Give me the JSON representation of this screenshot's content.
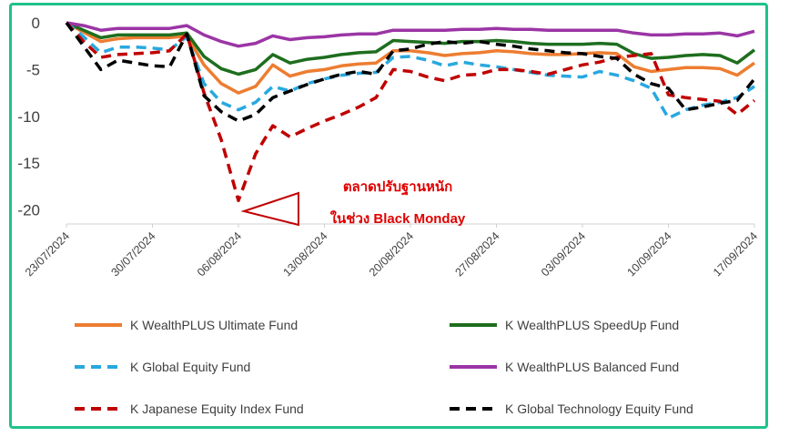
{
  "chart_data": {
    "type": "line",
    "ylim": [
      -21.5,
      0
    ],
    "yticks": [
      0,
      -5,
      -10,
      -15,
      -20
    ],
    "xticks": [
      "23/07/2024",
      "30/07/2024",
      "06/08/2024",
      "13/08/2024",
      "20/08/2024",
      "27/08/2024",
      "03/09/2024",
      "10/09/2024",
      "17/09/2024"
    ],
    "dates": [
      "23/07",
      "24/07",
      "25/07",
      "26/07",
      "29/07",
      "30/07",
      "31/07",
      "01/08",
      "02/08",
      "05/08",
      "06/08",
      "07/08",
      "08/08",
      "09/08",
      "12/08",
      "13/08",
      "14/08",
      "15/08",
      "16/08",
      "19/08",
      "20/08",
      "21/08",
      "22/08",
      "23/08",
      "26/08",
      "27/08",
      "28/08",
      "29/08",
      "30/08",
      "02/09",
      "03/09",
      "04/09",
      "05/09",
      "06/09",
      "09/09",
      "10/09",
      "11/09",
      "12/09",
      "13/09",
      "16/09",
      "17/09"
    ],
    "series": [
      {
        "name": "K WealthPLUS Ultimate Fund",
        "color": "#ed7d31",
        "dash": false,
        "values": [
          0,
          -1.0,
          -2.0,
          -1.7,
          -1.6,
          -1.6,
          -1.6,
          -1.4,
          -4.5,
          -6.5,
          -7.5,
          -6.8,
          -4.5,
          -5.7,
          -5.2,
          -5.0,
          -4.6,
          -4.4,
          -4.3,
          -3.0,
          -3.0,
          -3.2,
          -3.5,
          -3.3,
          -3.2,
          -3.0,
          -3.1,
          -3.3,
          -3.4,
          -3.4,
          -3.3,
          -3.2,
          -3.3,
          -4.7,
          -5.2,
          -5.0,
          -4.8,
          -4.8,
          -4.9,
          -5.6,
          -4.3
        ]
      },
      {
        "name": "K WealthPLUS SpeedUp Fund",
        "color": "#1e6e1e",
        "dash": false,
        "values": [
          0,
          -0.8,
          -1.6,
          -1.3,
          -1.3,
          -1.3,
          -1.3,
          -1.1,
          -3.6,
          -4.9,
          -5.5,
          -5.0,
          -3.4,
          -4.3,
          -3.9,
          -3.7,
          -3.4,
          -3.2,
          -3.1,
          -1.9,
          -2.0,
          -2.1,
          -2.2,
          -2.0,
          -2.0,
          -1.9,
          -2.0,
          -2.2,
          -2.3,
          -2.3,
          -2.3,
          -2.2,
          -2.3,
          -3.3,
          -3.8,
          -3.7,
          -3.5,
          -3.4,
          -3.5,
          -4.3,
          -2.9
        ]
      },
      {
        "name": "K Global Equity Fund",
        "color": "#28a8e0",
        "dash": true,
        "values": [
          0,
          -1.5,
          -3.2,
          -2.6,
          -2.6,
          -2.7,
          -2.9,
          -1.5,
          -6.5,
          -8.5,
          -9.3,
          -8.5,
          -6.8,
          -7.3,
          -6.5,
          -6.0,
          -5.6,
          -5.4,
          -5.3,
          -3.7,
          -3.6,
          -4.0,
          -4.6,
          -4.2,
          -4.5,
          -4.7,
          -5.0,
          -5.3,
          -5.6,
          -5.7,
          -5.8,
          -5.2,
          -5.6,
          -6.2,
          -7.0,
          -10.2,
          -9.3,
          -8.8,
          -8.5,
          -8.0,
          -6.8
        ]
      },
      {
        "name": "K WealthPLUS Balanced Fund",
        "color": "#9b35a5",
        "dash": false,
        "values": [
          0,
          -0.3,
          -0.8,
          -0.6,
          -0.6,
          -0.6,
          -0.6,
          -0.3,
          -1.3,
          -2.0,
          -2.5,
          -2.2,
          -1.4,
          -1.8,
          -1.6,
          -1.5,
          -1.3,
          -1.2,
          -1.2,
          -0.8,
          -0.8,
          -0.8,
          -0.8,
          -0.7,
          -0.7,
          -0.6,
          -0.7,
          -0.7,
          -0.8,
          -0.8,
          -0.8,
          -0.8,
          -0.8,
          -1.1,
          -1.3,
          -1.3,
          -1.2,
          -1.2,
          -1.1,
          -1.4,
          -0.9
        ]
      },
      {
        "name": "K Japanese Equity Index Fund",
        "color": "#c00000",
        "dash": true,
        "values": [
          0,
          -2.0,
          -3.7,
          -3.4,
          -3.3,
          -3.2,
          -3.0,
          -1.2,
          -7.5,
          -12.5,
          -19.0,
          -14.0,
          -11.0,
          -12.2,
          -11.3,
          -10.5,
          -9.8,
          -9.0,
          -8.0,
          -5.0,
          -5.2,
          -5.8,
          -6.2,
          -5.6,
          -5.5,
          -5.0,
          -5.0,
          -5.2,
          -5.5,
          -5.0,
          -4.5,
          -4.2,
          -3.7,
          -3.5,
          -3.3,
          -7.7,
          -8.0,
          -8.2,
          -8.4,
          -9.8,
          -8.3
        ]
      },
      {
        "name": "K Global Technology Equity Fund",
        "color": "#000000",
        "dash": true,
        "values": [
          0,
          -2.5,
          -5.0,
          -4.0,
          -4.3,
          -4.6,
          -4.7,
          -1.2,
          -7.8,
          -9.5,
          -10.5,
          -9.8,
          -8.0,
          -7.3,
          -6.6,
          -6.0,
          -5.5,
          -5.2,
          -5.5,
          -3.0,
          -2.8,
          -2.3,
          -2.0,
          -2.2,
          -2.0,
          -2.3,
          -2.5,
          -2.8,
          -3.0,
          -3.2,
          -3.3,
          -3.6,
          -3.8,
          -5.5,
          -6.5,
          -7.0,
          -9.3,
          -9.0,
          -8.6,
          -8.3,
          -6.0
        ]
      }
    ],
    "annotation": {
      "line1": "ตลาดปรับฐานหนัก",
      "line2": "ในช่วง Black Monday",
      "color": "#e00000"
    },
    "legend_position": "bottom",
    "grid": false
  }
}
